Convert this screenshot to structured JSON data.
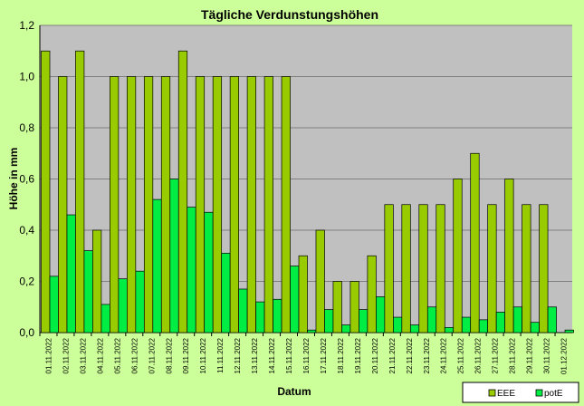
{
  "chart_data": {
    "type": "bar",
    "title": "Tägliche Verdunstungshöhen",
    "xlabel": "Datum",
    "ylabel": "Höhe in mm",
    "ylim": [
      0,
      1.2
    ],
    "yticks": [
      "0,0",
      "0,2",
      "0,4",
      "0,6",
      "0,8",
      "1,0",
      "1,2"
    ],
    "ytick_values": [
      0,
      0.2,
      0.4,
      0.6,
      0.8,
      1.0,
      1.2
    ],
    "grid": true,
    "legend_position": "bottom-right",
    "categories": [
      "01.11.2022",
      "02.11.2022",
      "03.11.2022",
      "04.11.2022",
      "05.11.2022",
      "06.11.2022",
      "07.11.2022",
      "08.11.2022",
      "09.11.2022",
      "10.11.2022",
      "11.11.2022",
      "12.11.2022",
      "13.11.2022",
      "14.11.2022",
      "15.11.2022",
      "16.11.2022",
      "17.11.2022",
      "18.11.2022",
      "19.11.2022",
      "20.11.2022",
      "21.11.2022",
      "22.11.2022",
      "23.11.2022",
      "24.11.2022",
      "25.11.2022",
      "26.11.2022",
      "27.11.2022",
      "28.11.2022",
      "29.11.2022",
      "30.11.2022",
      "01.12.2022"
    ],
    "series": [
      {
        "name": "EEE",
        "color": "#99cc00",
        "values": [
          1.1,
          1.0,
          1.1,
          0.4,
          1.0,
          1.0,
          1.0,
          1.0,
          1.1,
          1.0,
          1.0,
          1.0,
          1.0,
          1.0,
          1.0,
          0.3,
          0.4,
          0.2,
          0.2,
          0.3,
          0.5,
          0.5,
          0.5,
          0.5,
          0.6,
          0.7,
          0.5,
          0.6,
          0.5,
          0.5,
          0
        ]
      },
      {
        "name": "potE",
        "color": "#00ee44",
        "values": [
          0.22,
          0.46,
          0.32,
          0.11,
          0.21,
          0.24,
          0.52,
          0.6,
          0.49,
          0.47,
          0.31,
          0.17,
          0.12,
          0.13,
          0.26,
          0.01,
          0.09,
          0.03,
          0.09,
          0.14,
          0.06,
          0.03,
          0.1,
          0.02,
          0.06,
          0.05,
          0.08,
          0.1,
          0.04,
          0.1,
          0.01
        ]
      }
    ]
  },
  "colors": {
    "background": "#ccff99",
    "plot_area": "#c0c0c0",
    "gridline": "#808080",
    "bar_outline": "#000000"
  }
}
